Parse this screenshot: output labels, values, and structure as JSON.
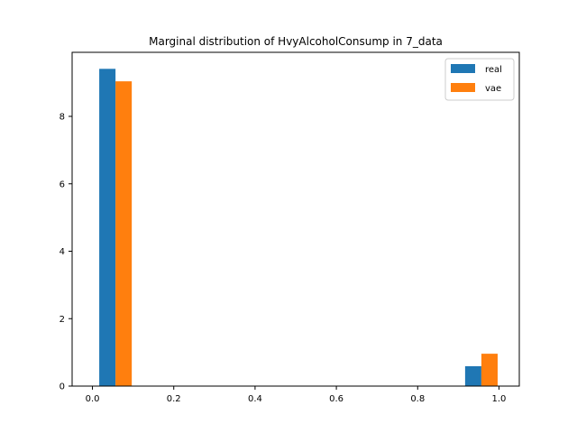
{
  "chart_data": {
    "type": "bar",
    "title": "Marginal distribution of HvyAlcoholConsump in 7_data",
    "xlabel": "",
    "ylabel": "",
    "xlim": [
      -0.05,
      1.05
    ],
    "ylim": [
      0,
      9.9
    ],
    "xticks": [
      0.0,
      0.2,
      0.4,
      0.6,
      0.8,
      1.0
    ],
    "xtick_labels": [
      "0.0",
      "0.2",
      "0.4",
      "0.6",
      "0.8",
      "1.0"
    ],
    "yticks": [
      0,
      2,
      4,
      6,
      8
    ],
    "ytick_labels": [
      "0",
      "2",
      "4",
      "6",
      "8"
    ],
    "grid": false,
    "legend_position": "top-right",
    "series": [
      {
        "name": "real",
        "color": "#1f77b4",
        "bars": [
          {
            "x0": 0.0167,
            "x1": 0.0567,
            "value": 9.41
          },
          {
            "x0": 0.9167,
            "x1": 0.9567,
            "value": 0.59
          }
        ]
      },
      {
        "name": "vae",
        "color": "#ff7f0e",
        "bars": [
          {
            "x0": 0.0567,
            "x1": 0.0967,
            "value": 9.04
          },
          {
            "x0": 0.9567,
            "x1": 0.9967,
            "value": 0.96
          }
        ]
      }
    ]
  }
}
